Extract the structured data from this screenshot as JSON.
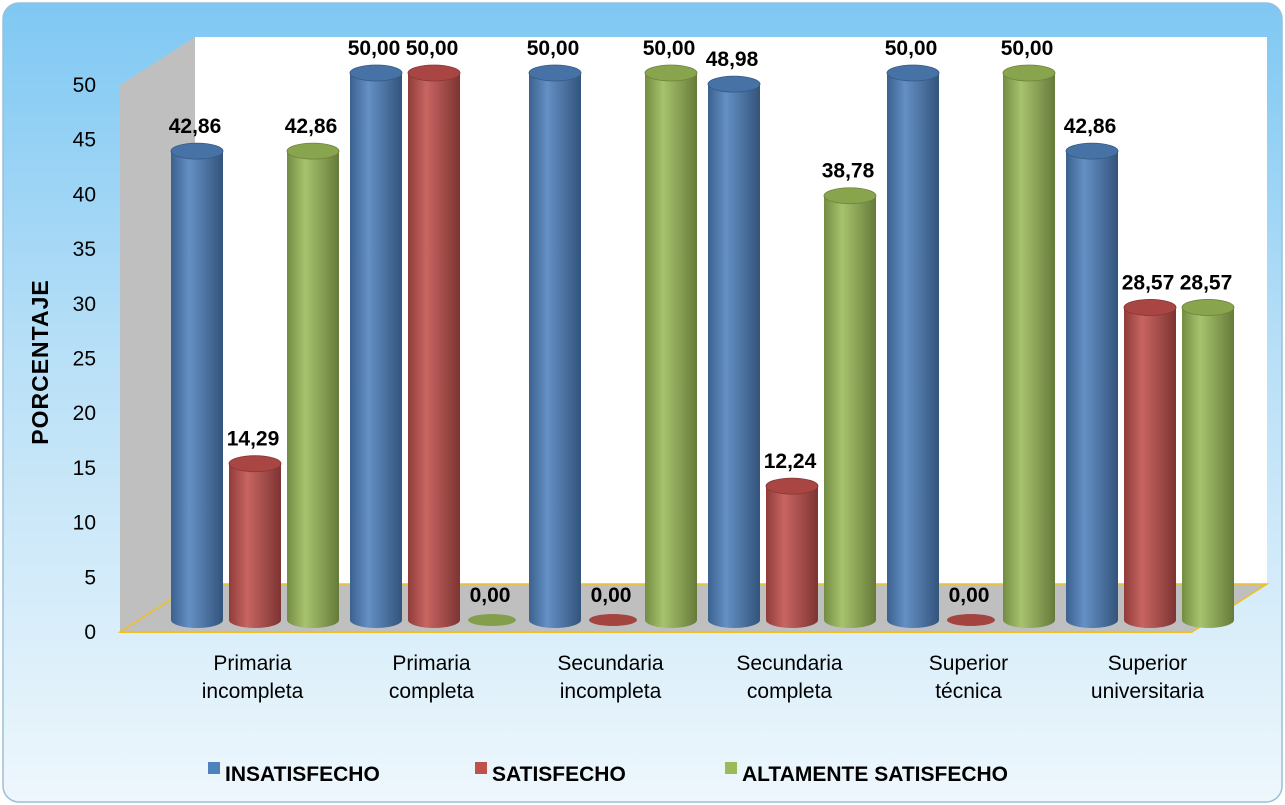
{
  "chart_data": {
    "type": "bar",
    "categories": [
      [
        "Primaria",
        "incompleta"
      ],
      [
        "Primaria",
        "completa"
      ],
      [
        "Secundaria",
        "incompleta"
      ],
      [
        "Secundaria",
        "completa"
      ],
      [
        "Superior",
        "técnica"
      ],
      [
        "Superior",
        "universitaria"
      ]
    ],
    "series": [
      {
        "name": "INSATISFECHO",
        "color": "#4F81BD",
        "values": [
          42.86,
          50.0,
          50.0,
          48.98,
          50.0,
          42.86
        ],
        "labels": [
          "42,86",
          "50,00",
          "50,00",
          "48,98",
          "50,00",
          "42,86"
        ]
      },
      {
        "name": "SATISFECHO",
        "color": "#C0504D",
        "values": [
          14.29,
          50.0,
          0.0,
          12.24,
          0.0,
          28.57
        ],
        "labels": [
          "14,29",
          "50,00",
          "0,00",
          "12,24",
          "0,00",
          "28,57"
        ]
      },
      {
        "name": "ALTAMENTE SATISFECHO",
        "color": "#9BBB59",
        "values": [
          42.86,
          0.0,
          50.0,
          38.78,
          50.0,
          28.57
        ],
        "labels": [
          "42,86",
          "0,00",
          "50,00",
          "38,78",
          "50,00",
          "28,57"
        ]
      }
    ],
    "ylabel": "PORCENTAJE",
    "xlabel": "",
    "ylim": [
      0,
      50
    ],
    "yticks": [
      "0",
      "5",
      "10",
      "15",
      "20",
      "25",
      "30",
      "35",
      "40",
      "45",
      "50"
    ],
    "bar_style": "3d-cylinder",
    "legend_position": "bottom",
    "colors": {
      "background_top": "#7FC8F3",
      "background_bottom": "#EAF4FB",
      "plot_area": "#FFFFFF",
      "floor": "#BFBFBF",
      "wall": "#BFBFBF",
      "border": "#F0C020"
    }
  }
}
